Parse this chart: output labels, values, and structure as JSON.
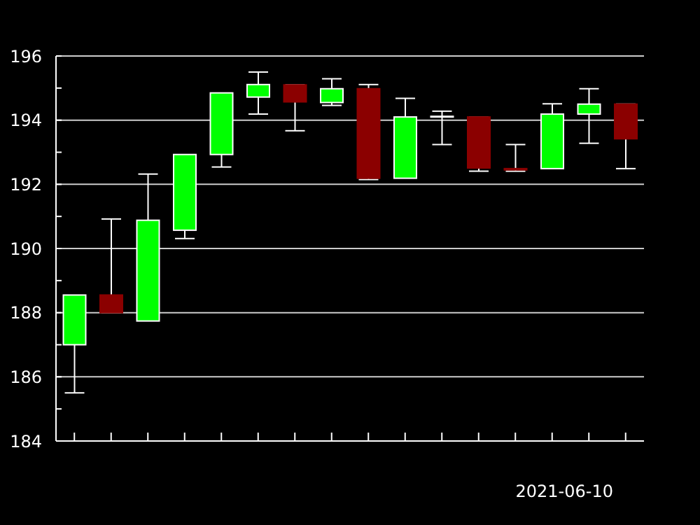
{
  "chart_data": {
    "type": "candlestick",
    "xlabel": "2021-06-10",
    "categories": [
      null,
      null,
      null,
      null,
      null,
      null,
      null,
      null,
      null,
      null,
      null,
      null,
      null,
      null,
      null,
      null
    ],
    "ohlc": [
      [
        187.0,
        188.55,
        185.5,
        188.55
      ],
      [
        188.55,
        190.92,
        188.0,
        188.0
      ],
      [
        187.74,
        192.32,
        187.74,
        190.88
      ],
      [
        190.57,
        192.93,
        190.31,
        192.93
      ],
      [
        192.93,
        194.85,
        192.54,
        194.85
      ],
      [
        194.72,
        195.5,
        194.19,
        195.11
      ],
      [
        195.1,
        195.1,
        193.67,
        194.57
      ],
      [
        194.55,
        195.29,
        194.46,
        194.98
      ],
      [
        194.98,
        195.11,
        192.15,
        192.19
      ],
      [
        192.19,
        194.68,
        192.19,
        194.1
      ],
      [
        194.1,
        194.28,
        193.24,
        194.12
      ],
      [
        194.1,
        194.1,
        192.41,
        192.51
      ],
      [
        192.49,
        193.24,
        192.41,
        192.45
      ],
      [
        192.49,
        194.51,
        192.49,
        194.19
      ],
      [
        194.19,
        194.98,
        193.28,
        194.5
      ],
      [
        194.5,
        194.5,
        192.49,
        193.42
      ]
    ],
    "colors": [
      "#00ff00",
      "#8b0000",
      "#00ff00",
      "#00ff00",
      "#00ff00",
      "#00ff00",
      "#8b0000",
      "#00ff00",
      "#8b0000",
      "#00ff00",
      "#00ff00",
      "#8b0000",
      "#8b0000",
      "#00ff00",
      "#00ff00",
      "#8b0000"
    ],
    "ylim": [
      184,
      196
    ],
    "yticks": [
      184,
      {
        "value": 185,
        "label": null
      },
      186,
      {
        "value": 187,
        "label": null
      },
      188,
      {
        "value": 189,
        "label": null
      },
      190,
      {
        "value": 191,
        "label": null
      },
      192,
      {
        "value": 193,
        "label": null
      },
      194,
      {
        "value": 195,
        "label": null
      },
      196
    ],
    "grid": "y"
  }
}
